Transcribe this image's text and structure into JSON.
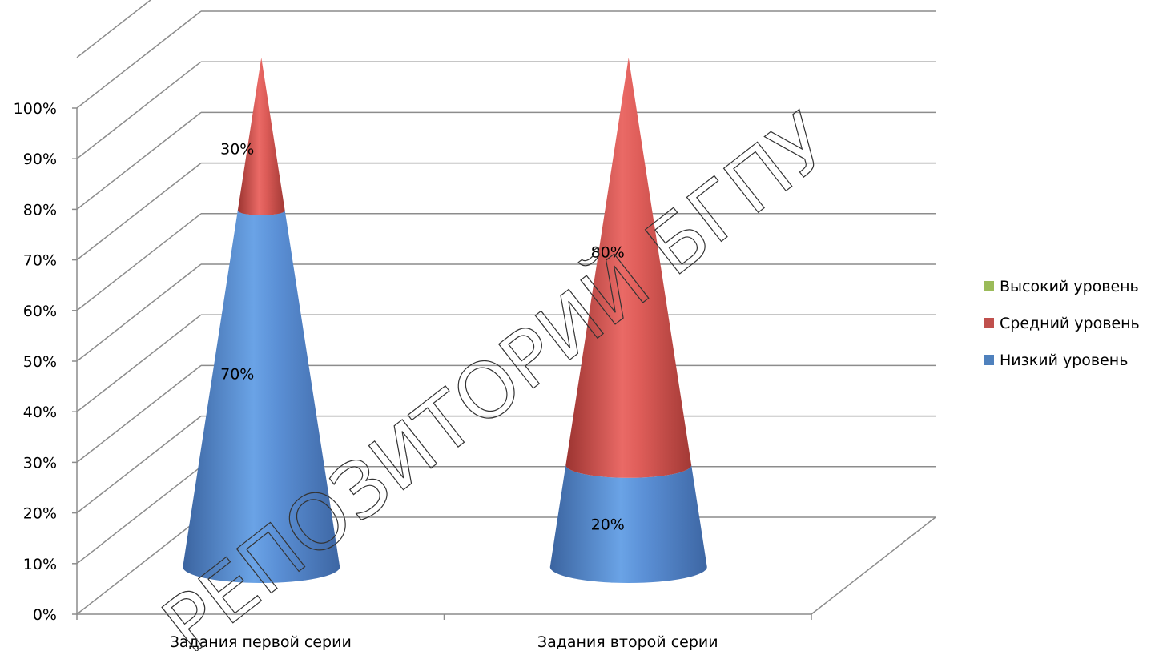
{
  "watermark": "РЕПОЗИТОРИЙ БГПУ",
  "chart_data": {
    "type": "bar",
    "shape": "cone-3d-stacked-100",
    "title": "",
    "xlabel": "",
    "ylabel": "",
    "categories": [
      "Задания первой серии",
      "Задания второй серии"
    ],
    "series": [
      {
        "name": "Низкий уровень",
        "values": [
          70,
          20
        ],
        "color": "#4f81bd",
        "labels": [
          "70%",
          "20%"
        ]
      },
      {
        "name": "Средний уровень",
        "values": [
          30,
          80
        ],
        "color": "#c0504d",
        "labels": [
          "30%",
          "80%"
        ]
      },
      {
        "name": "Высокий уровень",
        "values": [
          0,
          0
        ],
        "color": "#9bbb59",
        "labels": [
          "",
          ""
        ]
      }
    ],
    "yticks": [
      "0%",
      "10%",
      "20%",
      "30%",
      "40%",
      "50%",
      "60%",
      "70%",
      "80%",
      "90%",
      "100%"
    ],
    "ylim": [
      0,
      100
    ],
    "grid": true,
    "legend": {
      "position": "right",
      "order": [
        "Высокий уровень",
        "Средний уровень",
        "Низкий уровень"
      ]
    }
  }
}
